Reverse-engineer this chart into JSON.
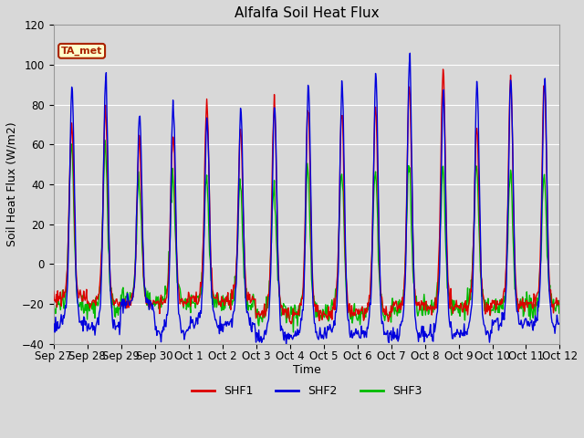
{
  "title": "Alfalfa Soil Heat Flux",
  "xlabel": "Time",
  "ylabel": "Soil Heat Flux (W/m2)",
  "ylim": [
    -40,
    120
  ],
  "series_labels": [
    "SHF1",
    "SHF2",
    "SHF3"
  ],
  "series_colors": [
    "#dd0000",
    "#0000dd",
    "#00bb00"
  ],
  "series_linewidths": [
    1.0,
    1.0,
    1.0
  ],
  "fig_bg_color": "#d8d8d8",
  "plot_bg_color": "#d8d8d8",
  "ta_met_label": "TA_met",
  "ta_met_bg": "#ffffcc",
  "ta_met_border": "#aa2200",
  "grid_color": "#ffffff",
  "n_days": 15,
  "yticks": [
    -40,
    -20,
    0,
    20,
    40,
    60,
    80,
    100,
    120
  ],
  "xtick_labels": [
    "Sep 27",
    "Sep 28",
    "Sep 29",
    "Sep 30",
    "Oct 1",
    "Oct 2",
    "Oct 3",
    "Oct 4",
    "Oct 5",
    "Oct 6",
    "Oct 7",
    "Oct 8",
    "Oct 9",
    "Oct 10",
    "Oct 11",
    "Oct 12"
  ],
  "day_peaks_shf1": [
    71,
    79,
    62,
    65,
    80,
    67,
    79,
    80,
    75,
    80,
    90,
    98,
    70,
    92,
    92
  ],
  "day_peaks_shf2": [
    91,
    95,
    75,
    80,
    73,
    79,
    81,
    91,
    90,
    97,
    104,
    86,
    93,
    92,
    93
  ],
  "day_peaks_shf3": [
    62,
    59,
    45,
    45,
    42,
    41,
    40,
    48,
    47,
    48,
    50,
    50,
    50,
    45,
    45
  ],
  "night_trough_shf1": [
    -17,
    -20,
    -20,
    -20,
    -18,
    -18,
    -25,
    -25,
    -25,
    -25,
    -22,
    -22,
    -22,
    -20,
    -20
  ],
  "night_trough_shf2": [
    -30,
    -32,
    -20,
    -35,
    -30,
    -30,
    -37,
    -37,
    -35,
    -35,
    -35,
    -35,
    -35,
    -30,
    -30
  ],
  "night_trough_shf3": [
    -20,
    -22,
    -18,
    -18,
    -20,
    -22,
    -25,
    -25,
    -25,
    -25,
    -22,
    -22,
    -22,
    -22,
    -22
  ],
  "title_fontsize": 11,
  "figsize": [
    6.4,
    4.8
  ],
  "dpi": 100
}
